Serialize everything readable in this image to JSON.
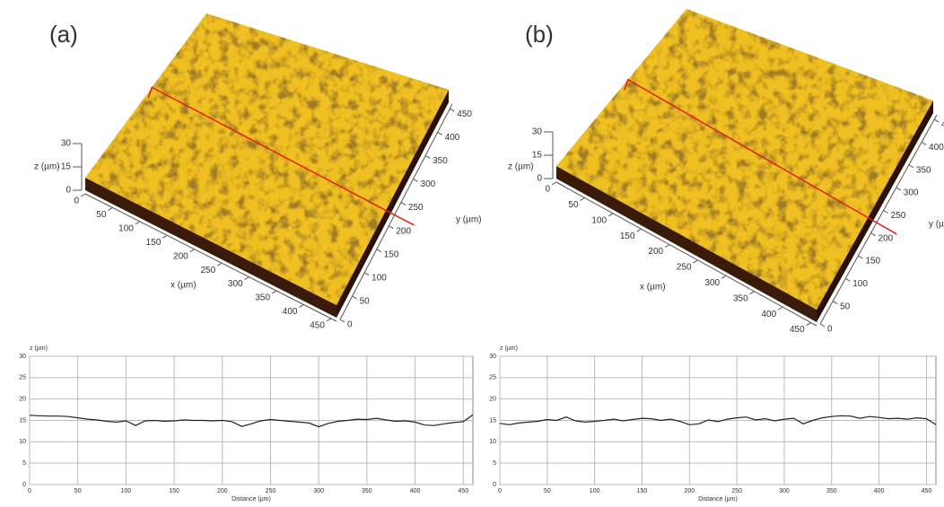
{
  "chart_data": [
    {
      "type": "surface3d",
      "label": "(a)",
      "xlabel": "x (µm)",
      "ylabel": "y (µm)",
      "zlabel": "z (µm)",
      "xticks": [
        0,
        50,
        100,
        150,
        200,
        250,
        300,
        350,
        400,
        450
      ],
      "yticks": [
        0,
        50,
        100,
        150,
        200,
        250,
        300,
        350,
        400,
        450
      ],
      "zticks": [
        0,
        15,
        30
      ],
      "xlim": [
        0,
        460
      ],
      "ylim": [
        0,
        460
      ],
      "color": "#f0c020"
    },
    {
      "type": "line",
      "ylabel": "z (µm)",
      "xlabel": "Distance (µm)",
      "color": "#222222",
      "grid": true,
      "xlim": [
        0,
        460
      ],
      "ylim": [
        0,
        30
      ],
      "xticks": [
        0,
        50,
        100,
        150,
        200,
        250,
        300,
        350,
        400,
        450
      ],
      "yticks": [
        0,
        5,
        10,
        15,
        20,
        25,
        30
      ],
      "x": [
        0,
        10,
        20,
        30,
        40,
        50,
        60,
        70,
        80,
        90,
        100,
        110,
        120,
        130,
        140,
        150,
        160,
        170,
        180,
        190,
        200,
        210,
        220,
        230,
        240,
        250,
        260,
        270,
        280,
        290,
        300,
        310,
        320,
        330,
        340,
        350,
        360,
        370,
        380,
        390,
        400,
        410,
        420,
        430,
        440,
        450,
        460
      ],
      "values": [
        16.2,
        16.1,
        16.0,
        16.0,
        15.9,
        15.6,
        15.3,
        15.1,
        14.8,
        14.6,
        14.9,
        13.8,
        14.9,
        15.0,
        14.8,
        14.9,
        15.1,
        15.0,
        15.0,
        14.9,
        15.0,
        14.7,
        13.6,
        14.2,
        14.9,
        15.2,
        15.0,
        14.8,
        14.6,
        14.4,
        13.5,
        14.3,
        14.8,
        15.0,
        15.3,
        15.2,
        15.5,
        15.1,
        14.8,
        14.9,
        14.6,
        13.9,
        13.8,
        14.2,
        14.5,
        14.7,
        16.3
      ]
    },
    {
      "type": "surface3d",
      "label": "(b)",
      "xlabel": "x (µm)",
      "ylabel": "y (µm)",
      "zlabel": "z (µm)",
      "xticks": [
        0,
        50,
        100,
        150,
        200,
        250,
        300,
        350,
        400,
        450
      ],
      "yticks": [
        0,
        50,
        100,
        150,
        200,
        250,
        300,
        350,
        400,
        450
      ],
      "zticks": [
        0,
        15,
        30
      ],
      "xlim": [
        0,
        460
      ],
      "ylim": [
        0,
        460
      ],
      "color": "#f0c020"
    },
    {
      "type": "line",
      "ylabel": "z (µm)",
      "xlabel": "Distance (µm)",
      "color": "#222222",
      "grid": true,
      "xlim": [
        0,
        460
      ],
      "ylim": [
        0,
        30
      ],
      "xticks": [
        0,
        50,
        100,
        150,
        200,
        250,
        300,
        350,
        400,
        450
      ],
      "yticks": [
        0,
        5,
        10,
        15,
        20,
        25,
        30
      ],
      "x": [
        0,
        10,
        20,
        30,
        40,
        50,
        60,
        70,
        80,
        90,
        100,
        110,
        120,
        130,
        140,
        150,
        160,
        170,
        180,
        190,
        200,
        210,
        220,
        230,
        240,
        250,
        260,
        270,
        280,
        290,
        300,
        310,
        320,
        330,
        340,
        350,
        360,
        370,
        380,
        390,
        400,
        410,
        420,
        430,
        440,
        450,
        460
      ],
      "values": [
        14.3,
        14.0,
        14.4,
        14.6,
        14.8,
        15.2,
        15.0,
        15.8,
        14.9,
        14.6,
        14.8,
        15.0,
        15.3,
        14.9,
        15.2,
        15.5,
        15.4,
        15.0,
        15.3,
        14.8,
        14.0,
        14.2,
        15.1,
        14.7,
        15.3,
        15.6,
        15.8,
        15.1,
        15.4,
        14.9,
        15.3,
        15.5,
        14.2,
        15.0,
        15.6,
        15.9,
        16.1,
        16.0,
        15.5,
        15.9,
        15.7,
        15.4,
        15.5,
        15.3,
        15.6,
        15.4,
        14.0
      ]
    }
  ]
}
